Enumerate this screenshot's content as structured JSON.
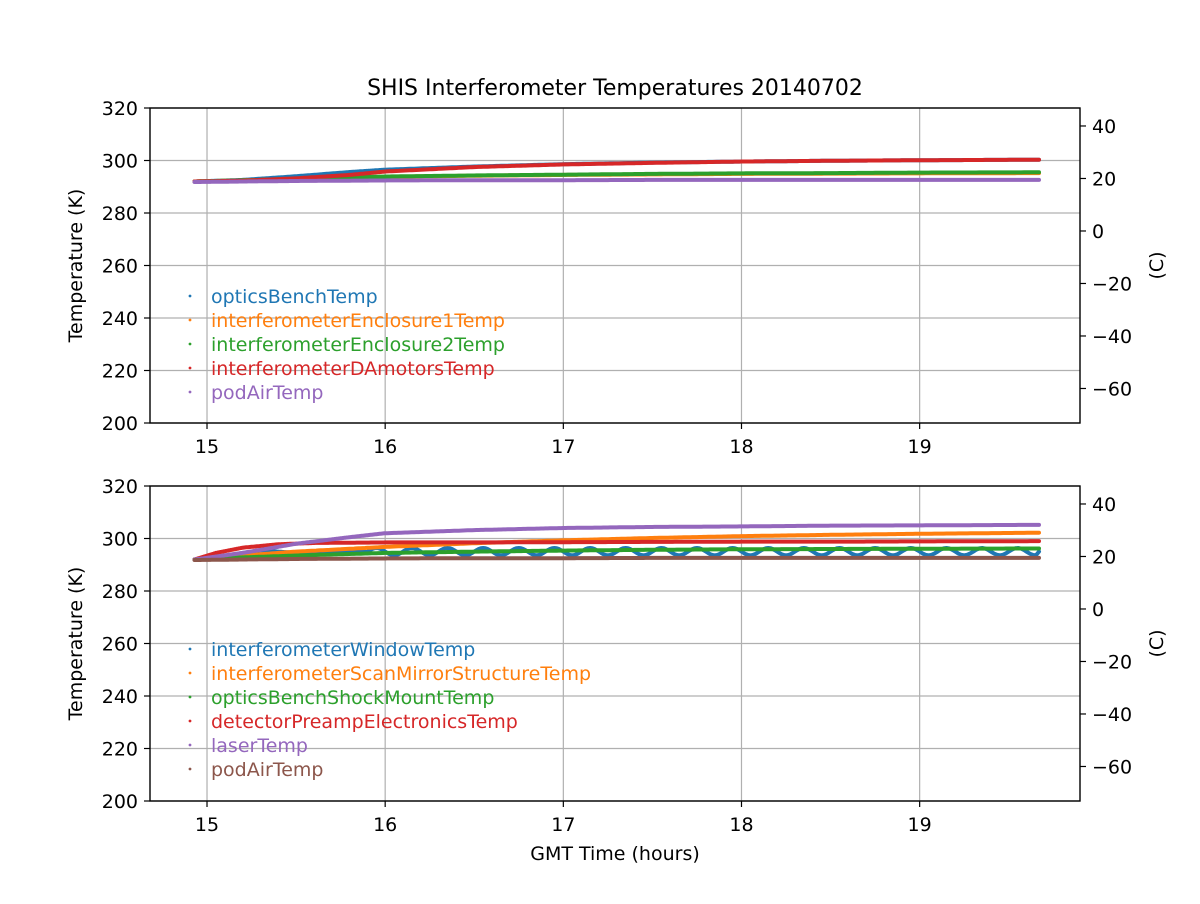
{
  "figure": {
    "title": "SHIS Interferometer Temperatures 20140702",
    "xlabel": "GMT Time (hours)"
  },
  "chart_data": [
    {
      "type": "line",
      "ylabel": "Temperature (K)",
      "y2label": "(C)",
      "xlim": [
        14.68,
        19.9
      ],
      "ylim": [
        200,
        320
      ],
      "y2lim": [
        -73.15,
        46.85
      ],
      "xticks": [
        15,
        16,
        17,
        18,
        19
      ],
      "yticks": [
        200,
        220,
        240,
        260,
        280,
        300,
        320
      ],
      "y2ticks": [
        -60,
        -40,
        -20,
        0,
        20,
        40
      ],
      "y2ticklabels": [
        "−60",
        "−40",
        "−20",
        "0",
        "20",
        "40"
      ],
      "grid": true,
      "legend_position": "lower-left",
      "series": [
        {
          "name": "opticsBenchTemp",
          "color": "#1f77b4",
          "x": [
            14.93,
            15.2,
            15.5,
            15.8,
            16.0,
            16.5,
            17.0,
            17.5,
            18.0,
            18.5,
            19.0,
            19.67
          ],
          "y": [
            292,
            292.6,
            294,
            295.6,
            296.5,
            297.7,
            298.6,
            299.2,
            299.6,
            299.9,
            300.1,
            300.3
          ]
        },
        {
          "name": "interferometerEnclosure1Temp",
          "color": "#ff7f0e",
          "x": [
            14.93,
            15.3,
            15.6,
            16.0,
            16.5,
            17.0,
            17.5,
            18.0,
            18.5,
            19.0,
            19.67
          ],
          "y": [
            292,
            292.6,
            293.2,
            293.8,
            294.2,
            294.5,
            294.7,
            294.9,
            295.0,
            295.1,
            295.2
          ]
        },
        {
          "name": "interferometerEnclosure2Temp",
          "color": "#2ca02c",
          "x": [
            14.93,
            15.3,
            15.6,
            16.0,
            16.5,
            17.0,
            17.5,
            18.0,
            18.5,
            19.0,
            19.67
          ],
          "y": [
            292,
            292.6,
            293.3,
            293.9,
            294.3,
            294.6,
            294.9,
            295.1,
            295.2,
            295.4,
            295.5
          ]
        },
        {
          "name": "interferometerDAmotorsTemp",
          "color": "#d62728",
          "x": [
            14.93,
            15.2,
            15.5,
            15.8,
            16.0,
            16.5,
            17.0,
            17.5,
            18.0,
            18.5,
            19.0,
            19.67
          ],
          "y": [
            292,
            292.3,
            293.2,
            294.5,
            295.8,
            297.5,
            298.5,
            299.1,
            299.6,
            299.9,
            300.1,
            300.3
          ]
        },
        {
          "name": "podAirTemp",
          "color": "#9467bd",
          "x": [
            14.93,
            15.2,
            15.5,
            16.0,
            16.5,
            17.0,
            17.5,
            18.0,
            18.5,
            19.0,
            19.67
          ],
          "y": [
            291.8,
            292.0,
            292.2,
            292.4,
            292.5,
            292.5,
            292.6,
            292.6,
            292.6,
            292.6,
            292.6
          ]
        }
      ]
    },
    {
      "type": "line",
      "ylabel": "Temperature (K)",
      "y2label": "(C)",
      "xlim": [
        14.68,
        19.9
      ],
      "ylim": [
        200,
        320
      ],
      "y2lim": [
        -73.15,
        46.85
      ],
      "xticks": [
        15,
        16,
        17,
        18,
        19
      ],
      "yticks": [
        200,
        220,
        240,
        260,
        280,
        300,
        320
      ],
      "y2ticks": [
        -60,
        -40,
        -20,
        0,
        20,
        40
      ],
      "y2ticklabels": [
        "−60",
        "−40",
        "−20",
        "0",
        "20",
        "40"
      ],
      "grid": true,
      "legend_position": "lower-left",
      "series": [
        {
          "name": "interferometerWindowTemp",
          "color": "#1f77b4",
          "x": [
            14.93,
            15.1,
            15.3,
            15.5,
            15.8,
            16.0,
            16.5,
            17.0,
            17.5,
            18.0,
            18.5,
            19.0,
            19.67
          ],
          "y": [
            292,
            293.5,
            295.5,
            294.5,
            294.8,
            295.0,
            295.0,
            295.0,
            295.0,
            295.0,
            295.0,
            295.0,
            295.0
          ],
          "oscillation": 1.4
        },
        {
          "name": "interferometerScanMirrorStructureTemp",
          "color": "#ff7f0e",
          "x": [
            14.93,
            15.2,
            15.5,
            16.0,
            16.5,
            17.0,
            17.5,
            18.0,
            18.5,
            19.0,
            19.67
          ],
          "y": [
            292,
            293.5,
            295.0,
            296.8,
            298.2,
            299.3,
            300.2,
            300.9,
            301.4,
            301.8,
            302.2
          ]
        },
        {
          "name": "opticsBenchShockMountTemp",
          "color": "#2ca02c",
          "x": [
            14.93,
            15.2,
            15.5,
            16.0,
            16.5,
            17.0,
            17.5,
            18.0,
            18.5,
            19.0,
            19.67
          ],
          "y": [
            292,
            292.8,
            293.5,
            294.5,
            295.0,
            295.4,
            295.7,
            295.9,
            296.0,
            296.1,
            296.2
          ]
        },
        {
          "name": "detectorPreampElectronicsTemp",
          "color": "#d62728",
          "x": [
            14.93,
            15.05,
            15.2,
            15.4,
            15.6,
            16.0,
            16.5,
            17.0,
            17.5,
            18.0,
            18.5,
            19.0,
            19.67
          ],
          "y": [
            292,
            294.5,
            296.5,
            297.8,
            298.3,
            298.5,
            298.5,
            298.6,
            298.7,
            298.8,
            298.8,
            298.9,
            299.0
          ]
        },
        {
          "name": "laserTemp",
          "color": "#9467bd",
          "x": [
            14.93,
            15.2,
            15.5,
            15.8,
            16.0,
            16.5,
            17.0,
            17.5,
            18.0,
            18.5,
            19.0,
            19.67
          ],
          "y": [
            292,
            294.5,
            298.0,
            300.5,
            302.0,
            303.2,
            304.0,
            304.4,
            304.6,
            304.9,
            305.0,
            305.2
          ]
        },
        {
          "name": "podAirTemp",
          "color": "#8c564b",
          "x": [
            14.93,
            15.2,
            15.5,
            16.0,
            16.5,
            17.0,
            17.5,
            18.0,
            18.5,
            19.0,
            19.67
          ],
          "y": [
            291.8,
            292.0,
            292.2,
            292.4,
            292.5,
            292.5,
            292.6,
            292.6,
            292.6,
            292.6,
            292.6
          ]
        }
      ]
    }
  ]
}
